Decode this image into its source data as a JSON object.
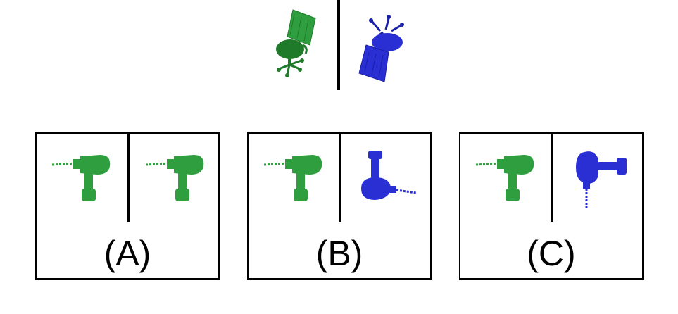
{
  "reference": {
    "left_icon": "green-office-chair-icon",
    "right_icon": "blue-office-chair-rotated-icon"
  },
  "options": [
    {
      "label": "(A)",
      "left_icon": "green-drill-icon",
      "right_icon": "green-drill-icon"
    },
    {
      "label": "(B)",
      "left_icon": "green-drill-icon",
      "right_icon": "blue-drill-rotated-icon"
    },
    {
      "label": "(C)",
      "left_icon": "green-drill-icon",
      "right_icon": "blue-drill-rotated-icon"
    }
  ],
  "colors": {
    "green": "#2e9e3e",
    "dark_green": "#1f7a2a",
    "blue": "#2a2fd4",
    "dark_blue": "#1a1fa8"
  }
}
